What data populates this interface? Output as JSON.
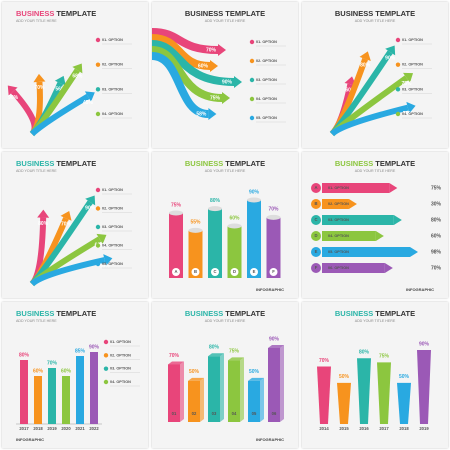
{
  "colors": [
    "#e8457a",
    "#f7931e",
    "#2bb5a8",
    "#8cc63f",
    "#29a9e1",
    "#9b59b6"
  ],
  "panels": [
    {
      "kind": "fan",
      "accent": "#e8457a",
      "title": [
        "BUSINESS",
        "TEMPLATE"
      ],
      "subtitle": "ADD YOUR TITLE HERE",
      "values": [
        90,
        70,
        56,
        68,
        45
      ],
      "value_labels": [
        "90%",
        "70%",
        "56%",
        "68%",
        "45%"
      ],
      "options": [
        "01. OPTION",
        "02. OPTION",
        "03. OPTION",
        "04. OPTION"
      ]
    },
    {
      "kind": "flow",
      "accent": "#333333",
      "title": [
        "BUSINESS",
        "TEMPLATE"
      ],
      "subtitle": "ADD YOUR TITLE HERE",
      "values": [
        70,
        60,
        90,
        75,
        58
      ],
      "value_labels": [
        "70%",
        "60%",
        "90%",
        "75%",
        "58%"
      ],
      "options": [
        "01. OPTION",
        "02. OPTION",
        "03. OPTION",
        "04. OPTION",
        "05. OPTION"
      ]
    },
    {
      "kind": "fan",
      "accent": "#333333",
      "title": [
        "BUSINESS",
        "TEMPLATE"
      ],
      "subtitle": "ADD YOUR TITLE HERE",
      "values": [
        60,
        80,
        90,
        75,
        55
      ],
      "value_labels": [
        "60%",
        "80%",
        "90%",
        "75%",
        "55%"
      ],
      "options": [
        "01. OPTION",
        "02. OPTION",
        "03. OPTION",
        "04. OPTION"
      ]
    },
    {
      "kind": "fan",
      "accent": "#2bb5a8",
      "title": [
        "BUSINESS",
        "TEMPLATE"
      ],
      "subtitle": "ADD YOUR TITLE HERE",
      "values": [
        80,
        70,
        90,
        60,
        50
      ],
      "value_labels": [
        "80%",
        "70%",
        "90%",
        "60%",
        "50%"
      ],
      "options": [
        "01. OPTION",
        "02. OPTION",
        "03. OPTION",
        "04. OPTION",
        "05. OPTION"
      ]
    },
    {
      "kind": "cylinder",
      "accent": "#8cc63f",
      "title": [
        "BUSINESS",
        "TEMPLATE"
      ],
      "subtitle": "ADD YOUR TITLE HERE",
      "categories": [
        "A",
        "B",
        "C",
        "D",
        "E",
        "F"
      ],
      "values": [
        75,
        55,
        80,
        60,
        90,
        70
      ],
      "value_labels": [
        "75%",
        "55%",
        "80%",
        "60%",
        "90%",
        "70%"
      ],
      "footer": "INFOGRAPHIC"
    },
    {
      "kind": "pencil",
      "accent": "#8cc63f",
      "title": [
        "BUSINESS",
        "TEMPLATE"
      ],
      "subtitle": "ADD YOUR TITLE HERE",
      "categories": [
        "A",
        "B",
        "C",
        "D",
        "E",
        "F"
      ],
      "values": [
        75,
        30,
        80,
        60,
        98,
        70
      ],
      "value_labels": [
        "75%",
        "30%",
        "80%",
        "60%",
        "98%",
        "70%"
      ],
      "options": [
        "01. OPTION",
        "02. OPTION",
        "03. OPTION",
        "04. OPTION",
        "05. OPTION",
        "06. OPTION"
      ],
      "footer": "INFOGRAPHIC"
    },
    {
      "kind": "bar",
      "accent": "#2bb5a8",
      "title": [
        "BUSINESS",
        "TEMPLATE"
      ],
      "subtitle": "ADD YOUR TITLE HERE",
      "categories": [
        "2017",
        "2018",
        "2019",
        "2020",
        "2021",
        "2022"
      ],
      "values": [
        80,
        60,
        70,
        60,
        85,
        90
      ],
      "value_labels": [
        "80%",
        "60%",
        "70%",
        "60%",
        "85%",
        "90%"
      ],
      "options": [
        "01. OPTION",
        "02. OPTION",
        "03. OPTION",
        "04. OPTION"
      ],
      "footer": "INFOGRAPHIC"
    },
    {
      "kind": "bar3d",
      "accent": "#2bb5a8",
      "title": [
        "BUSINESS",
        "TEMPLATE"
      ],
      "subtitle": "ADD YOUR TITLE HERE",
      "categories": [
        "01",
        "02",
        "03",
        "04",
        "05",
        "06"
      ],
      "values": [
        70,
        50,
        80,
        75,
        50,
        90
      ],
      "value_labels": [
        "70%",
        "50%",
        "80%",
        "75%",
        "50%",
        "90%"
      ],
      "footer": "INFOGRAPHIC"
    },
    {
      "kind": "trapezoid",
      "accent": "#2bb5a8",
      "title": [
        "BUSINESS",
        "TEMPLATE"
      ],
      "subtitle": "ADD YOUR TITLE HERE",
      "categories": [
        "2014",
        "2015",
        "2016",
        "2017",
        "2018",
        "2019"
      ],
      "values": [
        70,
        50,
        80,
        75,
        50,
        90
      ],
      "value_labels": [
        "70%",
        "50%",
        "80%",
        "75%",
        "50%",
        "90%"
      ]
    }
  ]
}
